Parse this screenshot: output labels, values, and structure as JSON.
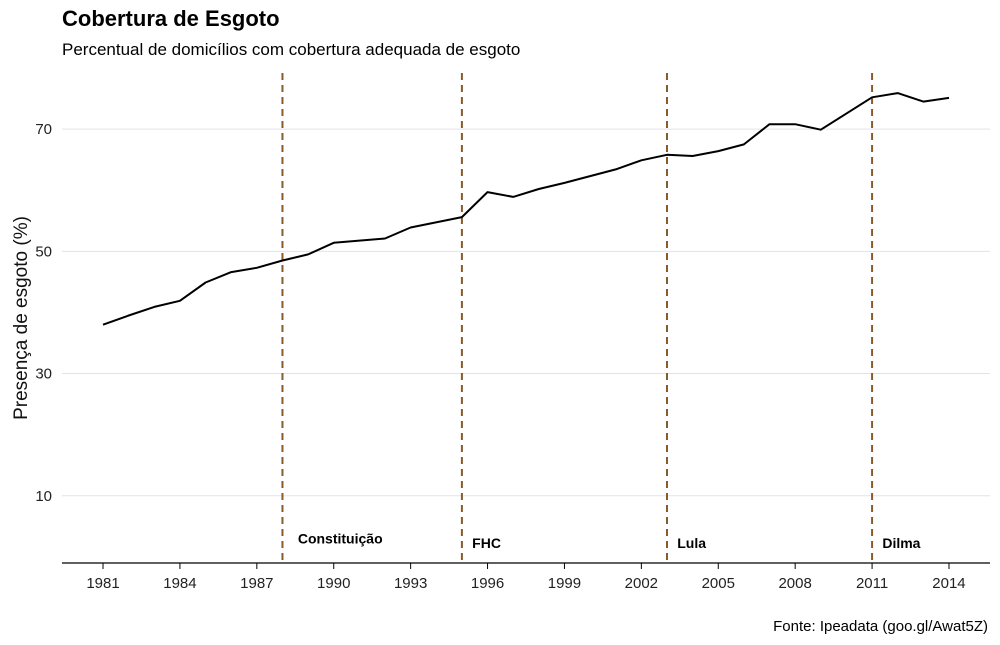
{
  "chart_data": {
    "type": "line",
    "title": "Cobertura de Esgoto",
    "subtitle": "Percentual de domicílios com cobertura adequada de esgoto",
    "xlabel": "",
    "ylabel": "Presença de esgoto (%)",
    "caption": "Fonte: Ipeadata (goo.gl/Awat5Z)",
    "xlim": [
      1979.4,
      2015.6
    ],
    "ylim": [
      -1,
      80
    ],
    "x_ticks": [
      "1981",
      "1984",
      "1987",
      "1990",
      "1993",
      "1996",
      "1999",
      "2002",
      "2005",
      "2008",
      "2011",
      "2014"
    ],
    "y_ticks": [
      "10",
      "30",
      "50",
      "70"
    ],
    "grid": "horizontal",
    "line_color": "#000000",
    "event_color": "#8B5A2B",
    "series": [
      {
        "x": [
          1981,
          1982,
          1983,
          1984,
          1985,
          1986,
          1987,
          1988,
          1989,
          1990,
          1992,
          1993,
          1995,
          1996,
          1997,
          1998,
          1999,
          2001,
          2002,
          2003,
          2004,
          2005,
          2006,
          2007,
          2008,
          2009,
          2011,
          2012,
          2013,
          2014
        ],
        "y": [
          38,
          39.5,
          40.9,
          41.9,
          44.9,
          46.6,
          47.3,
          48.5,
          49.5,
          51.4,
          52.1,
          53.9,
          55.6,
          59.7,
          58.9,
          60.2,
          61.2,
          63.4,
          64.9,
          65.8,
          65.6,
          66.4,
          67.5,
          70.8,
          70.8,
          69.9,
          75.2,
          75.9,
          74.5,
          75.1
        ]
      }
    ],
    "events": [
      {
        "x": 1988,
        "label": "Constituição",
        "label_x": 1988.6,
        "label_y": 1.5
      },
      {
        "x": 1995,
        "label": "FHC",
        "label_x": 1995.4,
        "label_y": 0.8
      },
      {
        "x": 2003,
        "label": "Lula",
        "label_x": 2003.4,
        "label_y": 0.8
      },
      {
        "x": 2011,
        "label": "Dilma",
        "label_x": 2011.4,
        "label_y": 0.8
      }
    ]
  }
}
